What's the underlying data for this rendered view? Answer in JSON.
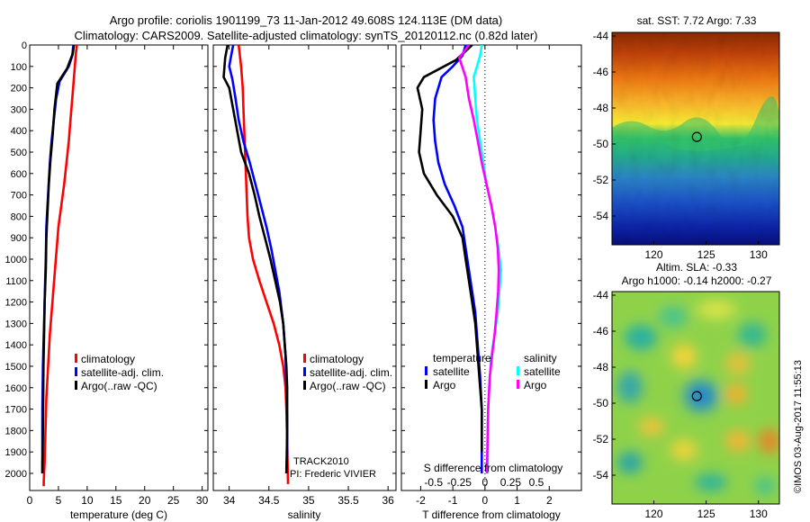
{
  "title_line1": "Argo profile: coriolis 1901199_73 11-Jan-2012 49.608S 124.113E (DM data)",
  "title_line2": "Climatology: CARS2009. Satellite-adjusted climatology: synTS_20120112.nc (0.82d later)",
  "colors": {
    "climatology": "#ff0000",
    "satellite": "#0000ff",
    "argo": "#000000",
    "argo_salinity_diff": "#ff00ff",
    "satellite_salinity_diff": "#00ffff"
  },
  "map_top": {
    "title": "sat. SST: 7.72  Argo: 7.33",
    "lat_ticks": [
      "-44",
      "-46",
      "-48",
      "-50",
      "-52",
      "-54"
    ],
    "lon_ticks": [
      "120",
      "125",
      "130"
    ]
  },
  "map_bottom": {
    "title_line1": "Altim. SLA: -0.33",
    "title_line2": "Argo h1000: -0.14 h2000: -0.27",
    "lat_ticks": [
      "-44",
      "-46",
      "-48",
      "-50",
      "-52",
      "-54"
    ],
    "lon_ticks": [
      "120",
      "125",
      "130"
    ]
  },
  "footer_stamp": "©IMOS 03-Aug-2017 11:55:13",
  "track_text": {
    "line1": "TRACK2010",
    "line2": "PI: Frederic  VIVIER"
  },
  "chart_data": [
    {
      "type": "line",
      "xlabel": "temperature (deg C)",
      "xlim": [
        0,
        31
      ],
      "ylim": [
        2080,
        0
      ],
      "x_ticks": [
        0,
        5,
        10,
        15,
        20,
        25,
        30
      ],
      "y_ticks": [
        0,
        100,
        200,
        300,
        400,
        500,
        600,
        700,
        800,
        900,
        1000,
        1100,
        1200,
        1300,
        1400,
        1500,
        1600,
        1700,
        1800,
        1900,
        2000
      ],
      "legend": [
        "climatology",
        "satellite-adj. clim.",
        "Argo(..raw -QC)"
      ],
      "series": [
        {
          "name": "climatology",
          "color_key": "climatology",
          "x": [
            8.2,
            8.0,
            7.7,
            7.4,
            7.1,
            6.8,
            6.4,
            6.0,
            5.5,
            5.0,
            4.7,
            4.4,
            4.1,
            3.8,
            3.5,
            3.3,
            3.1,
            2.9,
            2.8,
            2.7,
            2.6,
            2.5,
            2.45,
            2.45
          ],
          "y": [
            0,
            50,
            150,
            250,
            350,
            450,
            550,
            650,
            750,
            850,
            950,
            1050,
            1150,
            1250,
            1350,
            1450,
            1550,
            1650,
            1750,
            1850,
            1950,
            2000,
            2040,
            2060
          ]
        },
        {
          "name": "satellite-adj. clim.",
          "color_key": "satellite",
          "x": [
            7.6,
            7.4,
            6.8,
            5.2,
            4.6,
            4.2,
            3.8,
            3.5,
            3.3,
            3.1,
            2.9,
            2.8,
            2.7,
            2.6,
            2.5,
            2.4,
            2.3,
            2.25,
            2.2,
            2.2,
            2.2,
            2.2
          ],
          "y": [
            0,
            50,
            100,
            170,
            250,
            350,
            450,
            550,
            650,
            750,
            850,
            1000,
            1100,
            1200,
            1300,
            1400,
            1500,
            1600,
            1700,
            1800,
            1900,
            2000
          ]
        },
        {
          "name": "Argo(..raw -QC)",
          "color_key": "argo",
          "x": [
            7.7,
            7.5,
            6.5,
            4.8,
            4.3,
            4.0,
            3.6,
            3.3,
            3.1,
            2.9,
            2.8,
            2.6,
            2.5,
            2.4,
            2.35,
            2.3,
            2.25,
            2.2,
            2.2
          ],
          "y": [
            0,
            40,
            110,
            180,
            300,
            420,
            540,
            660,
            780,
            900,
            1050,
            1200,
            1350,
            1500,
            1650,
            1800,
            1900,
            1950,
            2000
          ]
        }
      ]
    },
    {
      "type": "line",
      "xlabel": "salinity",
      "xlim": [
        33.8,
        36.1
      ],
      "ylim": [
        2080,
        0
      ],
      "x_ticks": [
        34,
        34.5,
        35,
        35.5,
        36
      ],
      "legend": [
        "climatology",
        "satellite-adj. clim.",
        "Argo(..raw -QC)"
      ],
      "series": [
        {
          "name": "climatology",
          "color_key": "climatology",
          "x": [
            34.12,
            34.15,
            34.17,
            34.18,
            34.19,
            34.2,
            34.21,
            34.22,
            34.23,
            34.25,
            34.3,
            34.38,
            34.47,
            34.56,
            34.63,
            34.68,
            34.71,
            34.72,
            34.73,
            34.74
          ],
          "y": [
            0,
            100,
            200,
            300,
            400,
            500,
            600,
            700,
            800,
            900,
            1000,
            1100,
            1200,
            1300,
            1400,
            1500,
            1600,
            1700,
            1850,
            2050
          ]
        },
        {
          "name": "satellite-adj. clim.",
          "color_key": "satellite",
          "x": [
            34.05,
            34.02,
            34.0,
            34.04,
            34.08,
            34.12,
            34.18,
            34.26,
            34.33,
            34.4,
            34.47,
            34.53,
            34.58,
            34.63,
            34.68,
            34.71,
            34.72,
            34.73,
            34.73,
            34.72
          ],
          "y": [
            0,
            60,
            100,
            160,
            250,
            350,
            450,
            550,
            650,
            750,
            850,
            950,
            1050,
            1150,
            1300,
            1450,
            1600,
            1750,
            1900,
            2000
          ]
        },
        {
          "name": "Argo(..raw -QC)",
          "color_key": "argo",
          "x": [
            33.98,
            33.95,
            33.93,
            34.0,
            34.05,
            34.1,
            34.15,
            34.25,
            34.32,
            34.38,
            34.45,
            34.52,
            34.58,
            34.64,
            34.68,
            34.7,
            34.72,
            34.73,
            34.73,
            34.72
          ],
          "y": [
            0,
            60,
            150,
            200,
            300,
            400,
            500,
            600,
            700,
            800,
            900,
            1000,
            1100,
            1200,
            1300,
            1400,
            1500,
            1600,
            1800,
            2000
          ]
        }
      ]
    },
    {
      "type": "line",
      "xlabel": "T difference from climatology",
      "xlabel_top": "S difference from climatology",
      "xlim": [
        -2.6,
        3.0
      ],
      "ylim": [
        2080,
        0
      ],
      "x_ticks": [
        -2,
        -1,
        0,
        1,
        2
      ],
      "x_ticks_secondary": [
        "-0.5",
        "-0.25",
        "0",
        "0.25",
        "0.5"
      ],
      "legend_left": [
        "temperature",
        "satellite",
        "Argo"
      ],
      "legend_right": [
        "salinity",
        "satellite",
        "Argo"
      ],
      "series": [
        {
          "name": "satellite",
          "group": "temperature",
          "color_key": "satellite",
          "x": [
            -0.6,
            -0.7,
            -1.0,
            -1.35,
            -1.55,
            -1.6,
            -1.55,
            -1.45,
            -1.25,
            -0.95,
            -0.7,
            -0.6,
            -0.5,
            -0.4,
            -0.3,
            -0.25,
            -0.2,
            -0.15,
            -0.1,
            -0.1
          ],
          "y": [
            0,
            50,
            100,
            150,
            250,
            350,
            450,
            550,
            650,
            750,
            850,
            950,
            1050,
            1150,
            1250,
            1350,
            1450,
            1550,
            1700,
            2000
          ]
        },
        {
          "name": "Argo",
          "group": "temperature",
          "color_key": "argo",
          "x": [
            -0.4,
            -0.9,
            -1.9,
            -2.1,
            -1.95,
            -2.0,
            -2.05,
            -1.9,
            -1.5,
            -1.0,
            -0.7,
            -0.6,
            -0.5,
            -0.4,
            -0.3,
            -0.25,
            -0.2,
            -0.15,
            -0.1,
            -0.1
          ],
          "y": [
            0,
            70,
            150,
            200,
            300,
            400,
            500,
            600,
            700,
            800,
            900,
            1000,
            1100,
            1200,
            1300,
            1400,
            1500,
            1600,
            1700,
            1900
          ]
        },
        {
          "name": "satellite",
          "group": "salinity",
          "color_key": "satellite_salinity_diff",
          "x": [
            -0.1,
            -0.15,
            -0.35,
            -0.3,
            -0.25,
            -0.15,
            -0.05,
            0.05,
            0.2,
            0.32,
            0.42,
            0.5,
            0.45,
            0.4,
            0.3,
            0.2,
            0.15,
            0.1,
            0.08,
            0.08
          ],
          "y": [
            0,
            50,
            150,
            250,
            350,
            450,
            550,
            650,
            750,
            850,
            950,
            1050,
            1150,
            1250,
            1350,
            1450,
            1550,
            1700,
            1850,
            2000
          ]
        },
        {
          "name": "Argo",
          "group": "salinity",
          "color_key": "argo_salinity_diff",
          "x": [
            -0.5,
            -0.8,
            -0.6,
            -0.5,
            -0.35,
            -0.22,
            -0.1,
            0.05,
            0.2,
            0.32,
            0.4,
            0.43,
            0.41,
            0.36,
            0.3,
            0.22,
            0.15,
            0.1,
            0.08,
            0.06
          ],
          "y": [
            0,
            60,
            150,
            250,
            350,
            450,
            550,
            650,
            750,
            850,
            950,
            1050,
            1150,
            1250,
            1350,
            1450,
            1550,
            1700,
            1850,
            2000
          ]
        }
      ]
    },
    {
      "type": "heatmap",
      "title": "sat. SST: 7.72  Argo: 7.33",
      "xlim": [
        116,
        132
      ],
      "ylim": [
        -55.6,
        -43.8
      ],
      "marker": {
        "lon": 124.113,
        "lat": -49.608
      }
    },
    {
      "type": "heatmap",
      "title": "Altim. SLA: -0.33",
      "subtitle": "Argo h1000: -0.14 h2000: -0.27",
      "xlim": [
        116,
        132
      ],
      "ylim": [
        -55.6,
        -43.8
      ],
      "marker": {
        "lon": 124.113,
        "lat": -49.608
      }
    }
  ]
}
